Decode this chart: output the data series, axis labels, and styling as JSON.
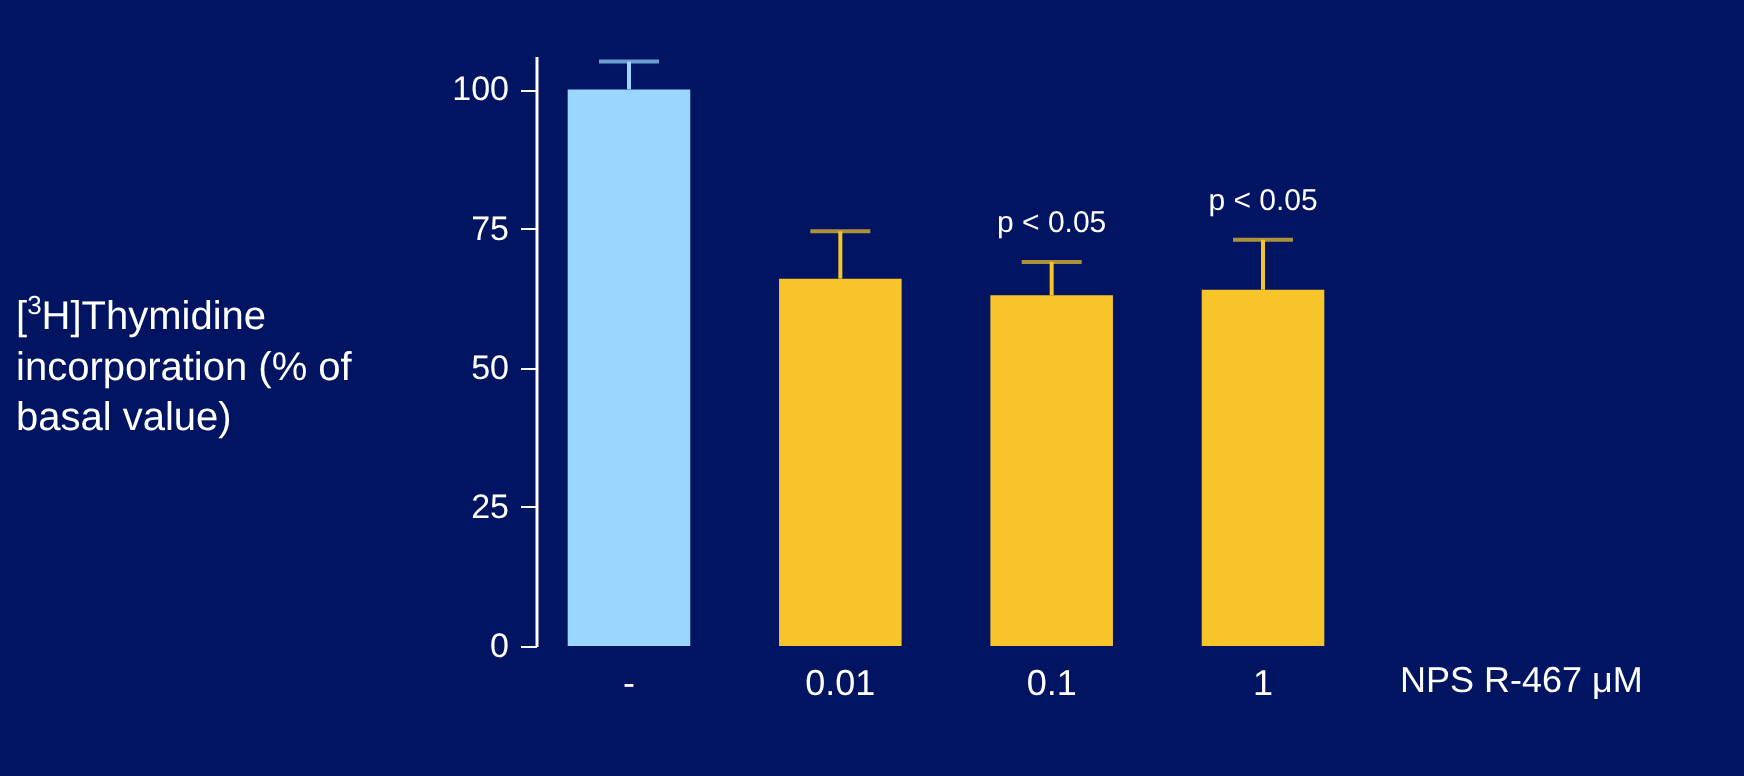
{
  "chart_data": {
    "type": "bar",
    "categories": [
      "-",
      "0.01",
      "0.1",
      "1"
    ],
    "values": [
      100,
      66,
      63,
      64
    ],
    "colors": [
      "#9ad6ff",
      "#f7c42a",
      "#f7c42a",
      "#f7c42a"
    ],
    "errors": [
      [
        100,
        105
      ],
      [
        66,
        74.5
      ],
      [
        63,
        69
      ],
      [
        64,
        73
      ]
    ],
    "ylim": [
      0,
      106
    ],
    "yticks": [
      0,
      25,
      50,
      75,
      100
    ],
    "ylabel": "[$^{3}$H]Thymidine incorporation (% of basal value)",
    "xlabel": "NPS R-467 μM",
    "annotations": [
      {
        "text": "p < 0.05",
        "x": "0.1",
        "y": 69
      },
      {
        "text": "p < 0.05",
        "x": "1",
        "y": 73
      }
    ],
    "grid": false
  }
}
